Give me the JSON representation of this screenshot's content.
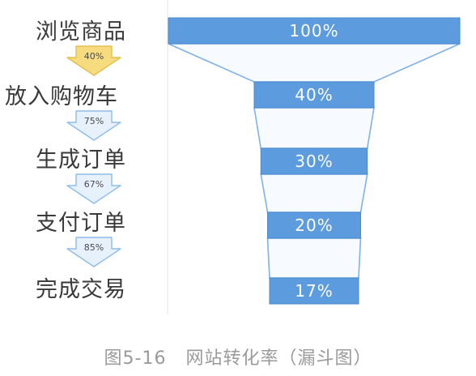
{
  "chart_data": {
    "type": "funnel",
    "stages": [
      {
        "label": "浏览商品",
        "value": 100,
        "value_label": "100%"
      },
      {
        "label": "放入购物车",
        "value": 40,
        "value_label": "40%"
      },
      {
        "label": "生成订单",
        "value": 30,
        "value_label": "30%"
      },
      {
        "label": "支付订单",
        "value": 20,
        "value_label": "20%"
      },
      {
        "label": "完成交易",
        "value": 17,
        "value_label": "17%"
      }
    ],
    "step_rates": [
      {
        "value": 40,
        "label": "40%"
      },
      {
        "value": 75,
        "label": "75%"
      },
      {
        "value": 67,
        "label": "67%"
      },
      {
        "value": 85,
        "label": "85%"
      }
    ],
    "colors": {
      "bar": "#5b9bde",
      "bar_edge": "#4a88cc",
      "funnel_outline": "#7fb1e6",
      "first_arrow_fill": "#f6dc7e",
      "first_arrow_edge": "#e4bf4e",
      "arrow_fill": "#e6f1fc",
      "arrow_edge": "#8fbce8"
    }
  },
  "caption": "图5-16   网站转化率（漏斗图）"
}
